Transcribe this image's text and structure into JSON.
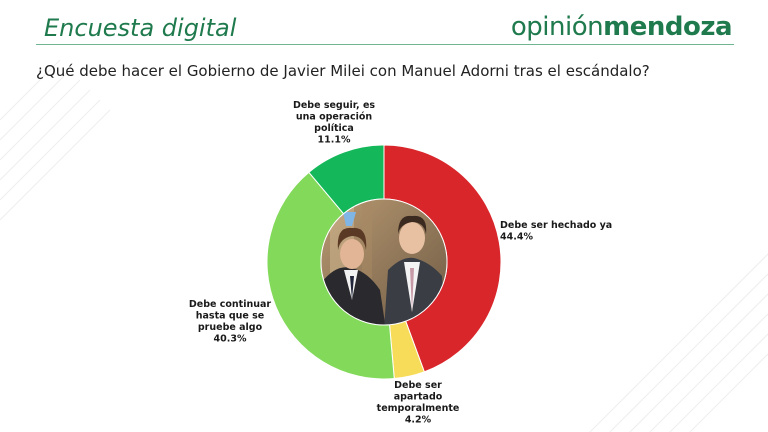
{
  "header": {
    "title": "Encuesta digital",
    "brand_light": "opinión",
    "brand_bold": "mendoza"
  },
  "question": "¿Qué debe hacer el Gobierno de Javier Milei con Manuel Adorni tras el escándalo?",
  "colors": {
    "brand_green": "#1f7a4d",
    "red": "#d9262b",
    "yellow": "#f7dc5a",
    "light_green": "#82d95a",
    "green": "#14b85a"
  },
  "chart_data": {
    "type": "pie",
    "donut": true,
    "title": "",
    "categories": [
      "Debe ser hechado ya",
      "Debe ser apartado temporalmente",
      "Debe continuar hasta que se pruebe algo",
      "Debe seguir, es una operación política"
    ],
    "values": [
      44.4,
      4.2,
      40.3,
      11.1
    ],
    "value_labels": [
      "44.4%",
      "4.2%",
      "40.3%",
      "11.1%"
    ],
    "label_lines": [
      [
        "Debe ser hechado ya"
      ],
      [
        "Debe ser",
        "apartado",
        "temporalmente"
      ],
      [
        "Debe continuar",
        "hasta que se",
        "pruebe algo"
      ],
      [
        "Debe seguir, es",
        "una operación",
        "política"
      ]
    ],
    "colors": [
      "#d9262b",
      "#f7dc5a",
      "#82d95a",
      "#14b85a"
    ],
    "center_image": "photo of two men in suits"
  }
}
